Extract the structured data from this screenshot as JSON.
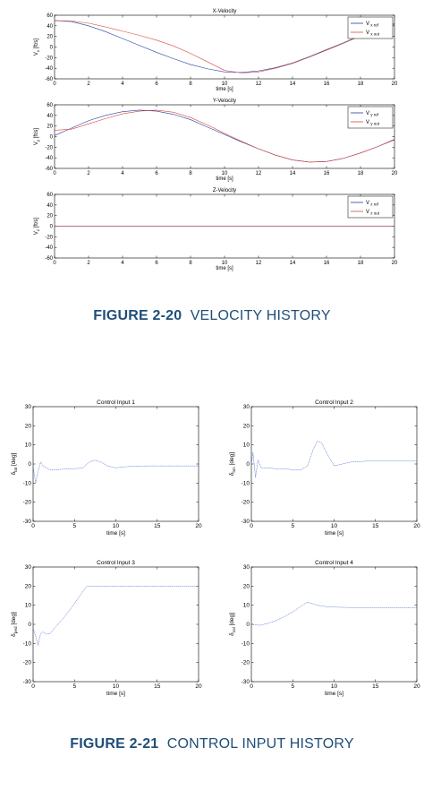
{
  "figures": [
    {
      "number": "FIGURE 2-20",
      "title": "VELOCITY HISTORY"
    },
    {
      "number": "FIGURE 2-21",
      "title": "CONTROL INPUT HISTORY"
    }
  ],
  "chart_data": [
    {
      "type": "line",
      "title": "X-Velocity",
      "xlabel": "time [s]",
      "ylabel": "V_x [ft/s]",
      "xlim": [
        0,
        20
      ],
      "ylim": [
        -60,
        60
      ],
      "xticks": [
        0,
        2,
        4,
        6,
        8,
        10,
        12,
        14,
        16,
        18,
        20
      ],
      "yticks": [
        60,
        40,
        20,
        0,
        -20,
        -40,
        -60
      ],
      "grid": false,
      "legend": "top-right",
      "legend_entries": [
        "V_x ref",
        "V_x out"
      ],
      "series": [
        {
          "name": "V_x ref",
          "color": "#1f3f9f",
          "x": [
            0,
            1,
            2,
            3,
            4,
            5,
            6,
            7,
            8,
            9,
            10,
            11,
            12,
            13,
            14,
            15,
            16,
            17,
            18,
            19,
            20
          ],
          "y": [
            50,
            48,
            40,
            29,
            16,
            3,
            -10,
            -22,
            -33,
            -41,
            -47,
            -48,
            -45,
            -39,
            -30,
            -18,
            -5,
            8,
            22,
            34,
            44
          ]
        },
        {
          "name": "V_x out",
          "color": "#d9463f",
          "x": [
            0,
            1,
            2,
            3,
            4,
            5,
            6,
            7,
            8,
            9,
            10,
            11,
            12,
            13,
            14,
            15,
            16,
            17,
            18,
            19,
            20
          ],
          "y": [
            50,
            49,
            45,
            38,
            30,
            22,
            13,
            2,
            -12,
            -28,
            -44,
            -49,
            -47,
            -40,
            -31,
            -19,
            -6,
            7,
            21,
            33,
            43
          ]
        }
      ]
    },
    {
      "type": "line",
      "title": "Y-Velocity",
      "xlabel": "time [s]",
      "ylabel": "V_y [ft/s]",
      "xlim": [
        0,
        20
      ],
      "ylim": [
        -60,
        60
      ],
      "xticks": [
        0,
        2,
        4,
        6,
        8,
        10,
        12,
        14,
        16,
        18,
        20
      ],
      "yticks": [
        60,
        40,
        20,
        0,
        -20,
        -40,
        -60
      ],
      "grid": false,
      "legend": "top-right",
      "legend_entries": [
        "V_y ref",
        "V_y out"
      ],
      "series": [
        {
          "name": "V_y ref",
          "color": "#1f3f9f",
          "x": [
            0,
            1,
            2,
            3,
            4,
            5,
            6,
            7,
            8,
            9,
            10,
            11,
            12,
            13,
            14,
            15,
            16,
            17,
            18,
            19,
            20
          ],
          "y": [
            2,
            16,
            30,
            40,
            47,
            50,
            48,
            42,
            32,
            18,
            4,
            -10,
            -23,
            -35,
            -44,
            -48,
            -47,
            -41,
            -31,
            -19,
            -6
          ]
        },
        {
          "name": "V_y out",
          "color": "#d9463f",
          "x": [
            0,
            1,
            2,
            3,
            4,
            5,
            6,
            7,
            8,
            9,
            10,
            11,
            12,
            13,
            14,
            15,
            16,
            17,
            18,
            19,
            20
          ],
          "y": [
            12,
            14,
            24,
            34,
            43,
            48,
            50,
            46,
            36,
            22,
            6,
            -9,
            -23,
            -35,
            -44,
            -48,
            -47,
            -41,
            -31,
            -19,
            -5
          ]
        }
      ]
    },
    {
      "type": "line",
      "title": "Z-Velocity",
      "xlabel": "time [s]",
      "ylabel": "V_z [ft/s]",
      "xlim": [
        0,
        20
      ],
      "ylim": [
        -60,
        60
      ],
      "xticks": [
        0,
        2,
        4,
        6,
        8,
        10,
        12,
        14,
        16,
        18,
        20
      ],
      "yticks": [
        60,
        40,
        20,
        0,
        -20,
        -40,
        -60
      ],
      "grid": false,
      "legend": "top-right",
      "legend_entries": [
        "V_z ref",
        "V_z out"
      ],
      "series": [
        {
          "name": "V_z ref",
          "color": "#1f3f9f",
          "x": [
            0,
            20
          ],
          "y": [
            0,
            0
          ]
        },
        {
          "name": "V_z out",
          "color": "#d9463f",
          "x": [
            0,
            20
          ],
          "y": [
            0,
            0
          ]
        }
      ]
    },
    {
      "type": "line",
      "title": "Control Input 1",
      "xlabel": "time [s]",
      "ylabel": "δ_lat [deg]",
      "xlim": [
        0,
        20
      ],
      "ylim": [
        -30,
        30
      ],
      "xticks": [
        0,
        5,
        10,
        15,
        20
      ],
      "yticks": [
        30,
        20,
        10,
        0,
        -10,
        -20,
        -30
      ],
      "grid": false,
      "series": [
        {
          "name": "",
          "color": "#3a5fcd",
          "x": [
            0,
            0.3,
            0.6,
            0.9,
            1.2,
            1.6,
            2,
            3,
            4,
            5,
            6,
            6.8,
            7.5,
            8.2,
            9,
            10,
            11,
            12,
            14,
            15,
            20
          ],
          "y": [
            -1,
            -10,
            -4,
            1,
            -1,
            -2,
            -3,
            -3,
            -2.5,
            -2.5,
            -2,
            1,
            2,
            1,
            -1,
            -2,
            -1.5,
            -1.2,
            -1,
            -1,
            -1
          ]
        }
      ]
    },
    {
      "type": "line",
      "title": "Control Input 2",
      "xlabel": "time [s]",
      "ylabel": "δ_lon [deg]",
      "xlim": [
        0,
        20
      ],
      "ylim": [
        -30,
        30
      ],
      "xticks": [
        0,
        5,
        10,
        15,
        20
      ],
      "yticks": [
        30,
        20,
        10,
        0,
        -10,
        -20,
        -30
      ],
      "grid": false,
      "series": [
        {
          "name": "",
          "color": "#3a5fcd",
          "x": [
            0,
            0.2,
            0.5,
            0.8,
            1.2,
            2,
            3,
            4,
            5,
            6,
            6.8,
            7.5,
            8,
            8.5,
            9.2,
            10,
            11,
            12,
            14,
            16,
            20
          ],
          "y": [
            0,
            6,
            -7,
            2,
            -2,
            -2,
            -2.5,
            -2.5,
            -3,
            -3,
            -1,
            8,
            12,
            11,
            5,
            -1,
            0,
            1,
            1.5,
            1.5,
            1.5
          ]
        }
      ]
    },
    {
      "type": "line",
      "title": "Control Input 3",
      "xlabel": "time [s]",
      "ylabel": "δ_ped [deg]",
      "xlim": [
        0,
        20
      ],
      "ylim": [
        -30,
        30
      ],
      "xticks": [
        0,
        5,
        10,
        15,
        20
      ],
      "yticks": [
        30,
        20,
        10,
        0,
        -10,
        -20,
        -30
      ],
      "grid": false,
      "series": [
        {
          "name": "",
          "color": "#3a5fcd",
          "x": [
            0,
            0.3,
            0.6,
            0.9,
            1.2,
            1.5,
            2,
            3,
            4,
            5,
            6,
            6.5,
            7,
            10,
            15,
            20
          ],
          "y": [
            -2,
            -6,
            -11,
            -5,
            -4,
            -5,
            -5,
            0,
            5,
            11,
            17,
            20,
            20,
            20,
            20,
            20
          ]
        }
      ]
    },
    {
      "type": "line",
      "title": "Control Input 4",
      "xlabel": "time [s]",
      "ylabel": "δ_col [deg]",
      "xlim": [
        0,
        20
      ],
      "ylim": [
        -30,
        30
      ],
      "xticks": [
        0,
        5,
        10,
        15,
        20
      ],
      "yticks": [
        30,
        20,
        10,
        0,
        -10,
        -20,
        -30
      ],
      "grid": false,
      "series": [
        {
          "name": "",
          "color": "#3a5fcd",
          "x": [
            0,
            1,
            2,
            3,
            4,
            5,
            6,
            6.7,
            7.3,
            8,
            9,
            10,
            12,
            14,
            16,
            20
          ],
          "y": [
            0,
            -0.5,
            0.5,
            2,
            4,
            6.5,
            9.5,
            11.5,
            11,
            10,
            9.3,
            9,
            8.8,
            8.8,
            8.8,
            8.8
          ]
        }
      ]
    }
  ]
}
